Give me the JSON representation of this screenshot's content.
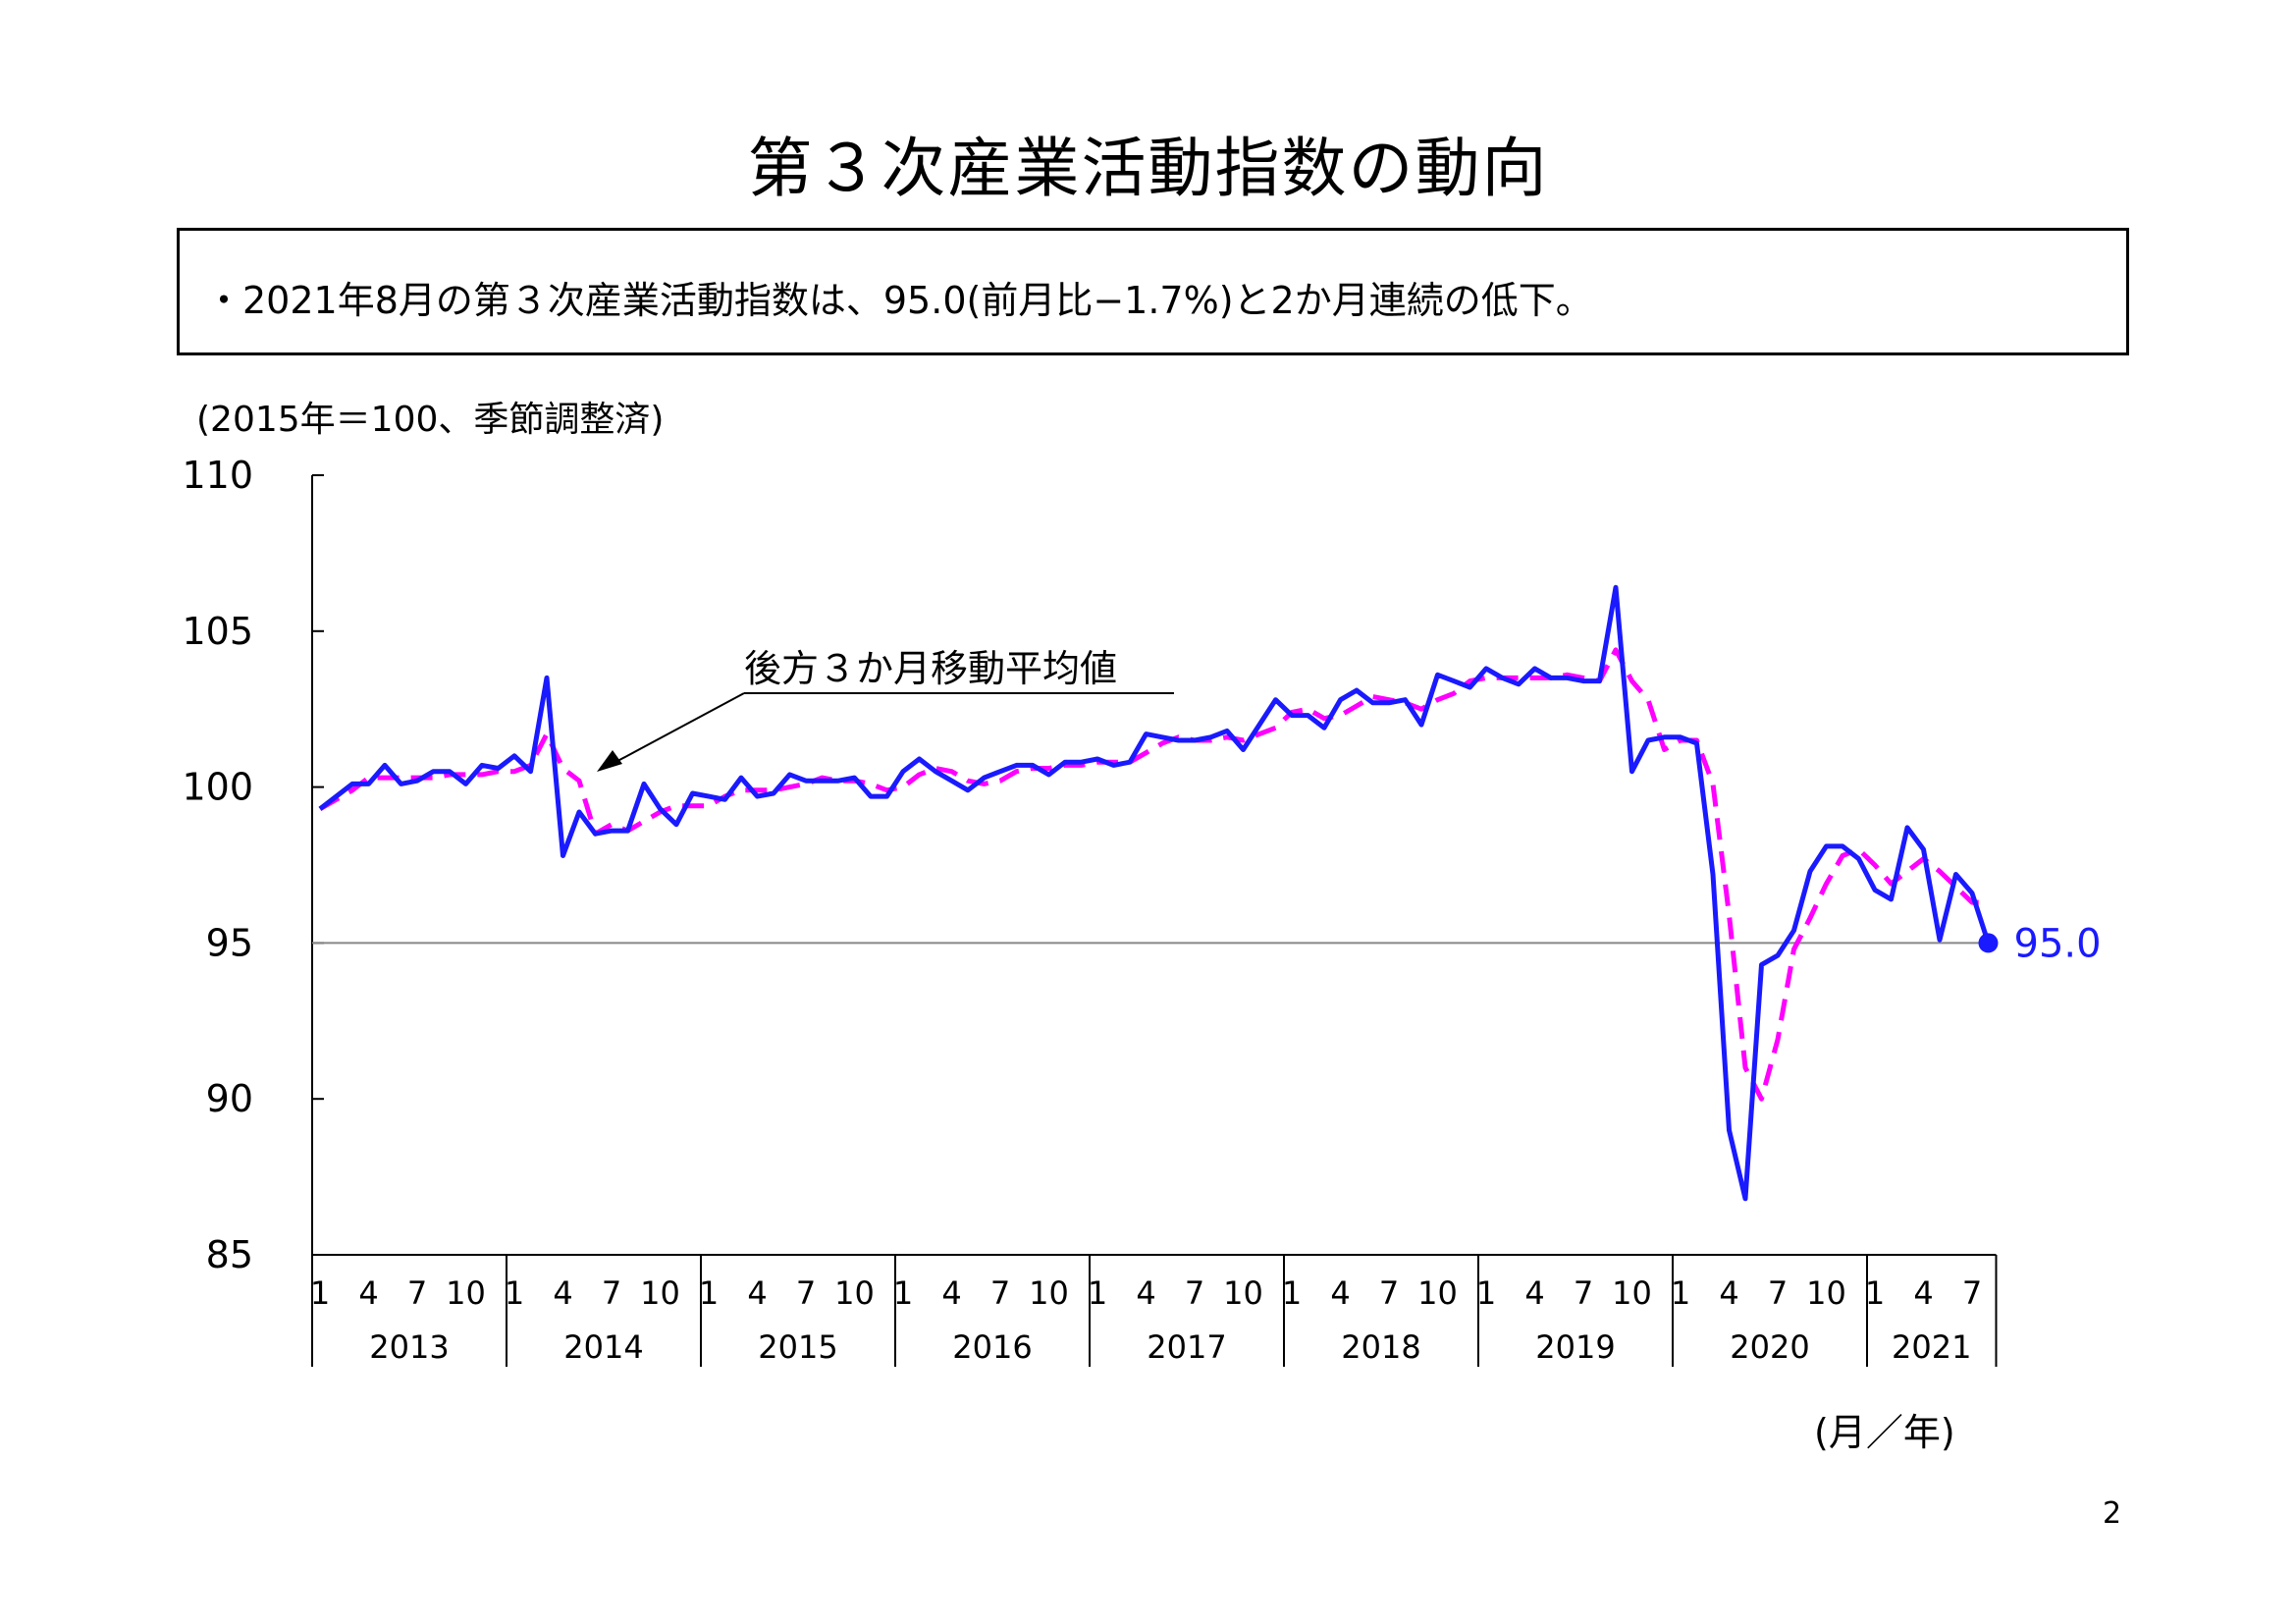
{
  "title": "第３次産業活動指数の動向",
  "summary": "・2021年8月の第３次産業活動指数は、95.0(前月比−1.7%)と2か月連続の低下。",
  "y_unit": "(2015年＝100、季節調整済)",
  "x_unit": "(月／年)",
  "page_number": "2",
  "chart_data": {
    "type": "line",
    "ylim": [
      85,
      110
    ],
    "yticks": [
      "85",
      "90",
      "95",
      "100",
      "105",
      "110"
    ],
    "month_tick_labels": [
      "1",
      "4",
      "7",
      "10"
    ],
    "years": [
      "2013",
      "2014",
      "2015",
      "2016",
      "2017",
      "2018",
      "2019",
      "2020",
      "2021"
    ],
    "reference_line": 95,
    "annotation": "後方３か月移動平均値",
    "last_value_label": "95.0",
    "colors": {
      "index": "#1a1aff",
      "moving_average": "#ff00ff",
      "reference": "#888888"
    },
    "series": [
      {
        "style": "solid",
        "start": "2013-01",
        "values": [
          99.3,
          99.7,
          100.1,
          100.1,
          100.7,
          100.1,
          100.2,
          100.5,
          100.5,
          100.1,
          100.7,
          100.6,
          101.0,
          100.5,
          103.5,
          97.8,
          99.2,
          98.5,
          98.6,
          98.6,
          100.1,
          99.3,
          98.8,
          99.8,
          99.7,
          99.6,
          100.3,
          99.7,
          99.8,
          100.4,
          100.2,
          100.2,
          100.2,
          100.3,
          99.7,
          99.7,
          100.5,
          100.9,
          100.5,
          100.2,
          99.9,
          100.3,
          100.5,
          100.7,
          100.7,
          100.4,
          100.8,
          100.8,
          100.9,
          100.7,
          100.8,
          101.7,
          101.6,
          101.5,
          101.5,
          101.6,
          101.8,
          101.2,
          102.0,
          102.8,
          102.3,
          102.3,
          101.9,
          102.8,
          103.1,
          102.7,
          102.7,
          102.8,
          102.0,
          103.6,
          103.4,
          103.2,
          103.8,
          103.5,
          103.3,
          103.8,
          103.5,
          103.5,
          103.4,
          103.4,
          106.4,
          100.5,
          101.5,
          101.6,
          101.6,
          101.4,
          97.2,
          89.0,
          86.8,
          94.3,
          94.6,
          95.4,
          97.3,
          98.1,
          98.1,
          97.7,
          96.7,
          96.4,
          98.7,
          98.0,
          95.1,
          97.2,
          96.6,
          95.0
        ]
      },
      {
        "style": "dashed",
        "start": "2013-01",
        "values": [
          99.3,
          99.6,
          99.9,
          100.3,
          100.3,
          100.3,
          100.3,
          100.3,
          100.4,
          100.4,
          100.4,
          100.5,
          100.5,
          100.7,
          101.7,
          100.6,
          100.2,
          98.5,
          98.8,
          98.6,
          98.9,
          99.2,
          99.4,
          99.4,
          99.4,
          99.7,
          99.9,
          99.9,
          99.9,
          100.0,
          100.1,
          100.3,
          100.2,
          100.2,
          100.1,
          99.9,
          100.0,
          100.4,
          100.6,
          100.5,
          100.2,
          100.1,
          100.2,
          100.5,
          100.6,
          100.6,
          100.7,
          100.7,
          100.8,
          100.8,
          100.8,
          101.1,
          101.4,
          101.6,
          101.5,
          101.5,
          101.6,
          101.5,
          101.7,
          101.9,
          102.4,
          102.5,
          102.2,
          102.3,
          102.6,
          102.9,
          102.8,
          102.7,
          102.5,
          102.8,
          103.0,
          103.4,
          103.5,
          103.5,
          103.5,
          103.5,
          103.5,
          103.6,
          103.5,
          103.4,
          104.4,
          103.4,
          102.8,
          101.2,
          101.5,
          101.5,
          100.1,
          95.9,
          91.0,
          90.0,
          91.9,
          94.8,
          95.8,
          96.9,
          97.8,
          98.0,
          97.5,
          96.9,
          97.3,
          97.7,
          97.3,
          96.8,
          96.3,
          96.3
        ]
      }
    ]
  }
}
